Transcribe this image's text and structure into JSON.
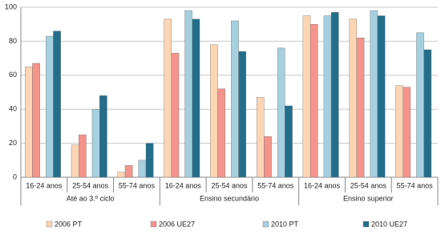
{
  "chart_data": {
    "type": "bar",
    "groups": [
      {
        "name": "Até ao 3.º ciclo",
        "categories": [
          "16-24 anos",
          "25-54 anos",
          "55-74 anos"
        ]
      },
      {
        "name": "Ensino secundário",
        "categories": [
          "16-24 anos",
          "25-54 anos",
          "55-74 anos"
        ]
      },
      {
        "name": "Ensino superior",
        "categories": [
          "16-24 anos",
          "25-54 anos",
          "55-74 anos"
        ]
      }
    ],
    "series": [
      {
        "name": "2006 PT",
        "color": "#fcd5b4",
        "values": [
          65,
          19,
          3,
          93,
          78,
          47,
          95,
          93,
          54
        ]
      },
      {
        "name": "2006 UE27",
        "color": "#f4948c",
        "values": [
          67,
          25,
          7,
          73,
          52,
          24,
          90,
          82,
          53
        ]
      },
      {
        "name": "2010 PT",
        "color": "#a6cfdf",
        "values": [
          83,
          40,
          10,
          98,
          92,
          76,
          95,
          98,
          85
        ]
      },
      {
        "name": "2010 UE27",
        "color": "#236e8b",
        "values": [
          86,
          48,
          20,
          93,
          74,
          42,
          97,
          95,
          75
        ]
      }
    ],
    "ylim": [
      0,
      100
    ],
    "yticks": [
      0,
      20,
      40,
      60,
      80,
      100
    ],
    "grid": true,
    "legend": "bottom"
  }
}
